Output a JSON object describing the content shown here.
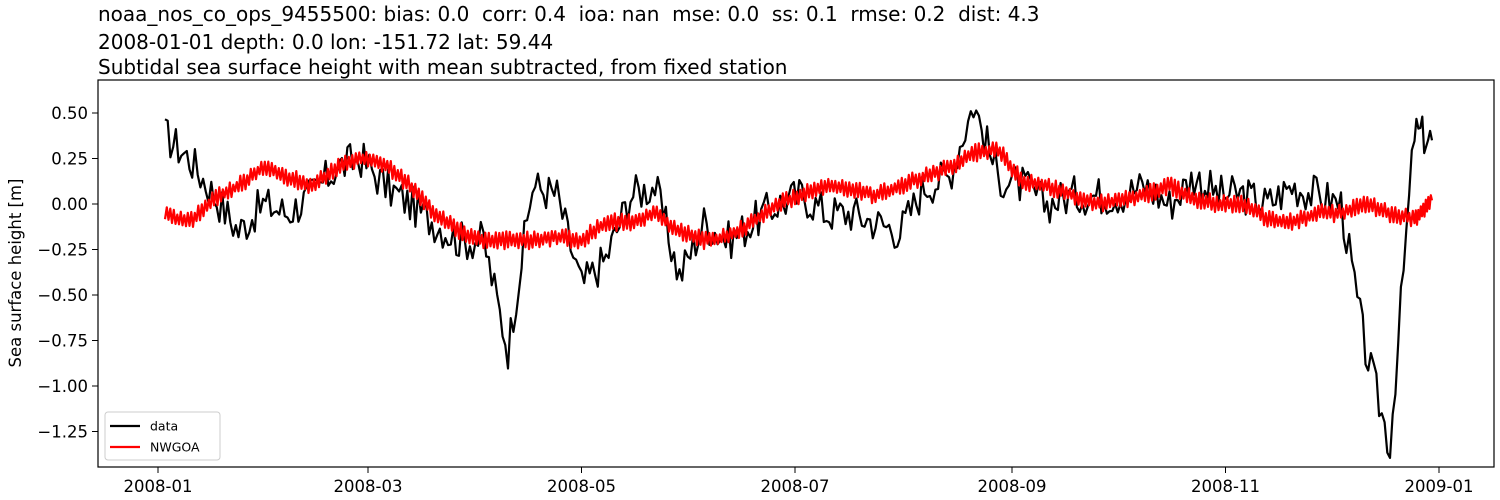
{
  "title": {
    "line1": "noaa_nos_co_ops_9455500: bias: 0.0  corr: 0.4  ioa: nan  mse: 0.0  ss: 0.1  rmse: 0.2  dist: 4.3",
    "line2": "2008-01-01 depth: 0.0 lon: -151.72 lat: 59.44",
    "line3": "Subtidal sea surface height with mean subtracted, from fixed station"
  },
  "colors": {
    "data": "#000000",
    "model": "#ff0000",
    "axes": "#000000",
    "legend_border": "#cccccc"
  },
  "chart_data": {
    "type": "line",
    "title": "noaa_nos_co_ops_9455500: bias: 0.0  corr: 0.4  ioa: nan  mse: 0.0  ss: 0.1  rmse: 0.2  dist: 4.3 / 2008-01-01 depth: 0.0 lon: -151.72 lat: 59.44 / Subtidal sea surface height with mean subtracted, from fixed station",
    "xlabel": "",
    "ylabel": "Sea surface height [m]",
    "xlim": [
      "2007-12-04",
      "2009-01-28"
    ],
    "ylim": [
      -1.43,
      0.68
    ],
    "grid": false,
    "legend_position": "lower left",
    "x_ticks": [
      "2008-01",
      "2008-03",
      "2008-05",
      "2008-07",
      "2008-09",
      "2008-11",
      "2009-01"
    ],
    "y_ticks": [
      "0.50",
      "0.25",
      "0.00",
      "−0.25",
      "−0.50",
      "−0.75",
      "−1.00",
      "−1.25"
    ],
    "y_tick_values": [
      0.5,
      0.25,
      0.0,
      -0.25,
      -0.5,
      -0.75,
      -1.0,
      -1.25
    ],
    "x": [
      "2008-01-03",
      "2008-01-10",
      "2008-01-17",
      "2008-01-24",
      "2008-01-31",
      "2008-02-07",
      "2008-02-14",
      "2008-02-21",
      "2008-02-28",
      "2008-03-06",
      "2008-03-13",
      "2008-03-20",
      "2008-03-27",
      "2008-04-03",
      "2008-04-10",
      "2008-04-17",
      "2008-04-24",
      "2008-05-01",
      "2008-05-08",
      "2008-05-15",
      "2008-05-22",
      "2008-05-29",
      "2008-06-05",
      "2008-06-12",
      "2008-06-19",
      "2008-06-26",
      "2008-07-03",
      "2008-07-10",
      "2008-07-17",
      "2008-07-24",
      "2008-07-31",
      "2008-08-07",
      "2008-08-14",
      "2008-08-21",
      "2008-08-28",
      "2008-09-04",
      "2008-09-11",
      "2008-09-18",
      "2008-09-25",
      "2008-10-02",
      "2008-10-09",
      "2008-10-16",
      "2008-10-23",
      "2008-10-30",
      "2008-11-06",
      "2008-11-13",
      "2008-11-20",
      "2008-11-27",
      "2008-12-04",
      "2008-12-11",
      "2008-12-18",
      "2008-12-25",
      "2008-12-30"
    ],
    "series": [
      {
        "name": "data",
        "color": "#000000",
        "values": [
          0.38,
          0.25,
          0.05,
          -0.15,
          0.0,
          -0.05,
          0.05,
          0.2,
          0.25,
          0.1,
          0.0,
          -0.1,
          -0.2,
          -0.2,
          -0.8,
          0.1,
          0.05,
          -0.45,
          -0.3,
          0.05,
          0.1,
          -0.4,
          -0.1,
          -0.2,
          -0.1,
          0.0,
          0.05,
          -0.05,
          -0.05,
          -0.1,
          -0.15,
          0.1,
          0.15,
          0.55,
          0.15,
          0.1,
          0.0,
          0.05,
          0.05,
          0.05,
          0.1,
          0.0,
          0.15,
          0.05,
          0.05,
          0.0,
          0.1,
          0.05,
          0.0,
          -0.8,
          -1.33,
          0.4,
          0.35
        ]
      },
      {
        "name": "NWGOA",
        "color": "#ff0000",
        "values": [
          -0.06,
          -0.1,
          0.03,
          0.1,
          0.2,
          0.15,
          0.1,
          0.2,
          0.25,
          0.22,
          0.1,
          -0.05,
          -0.15,
          -0.2,
          -0.2,
          -0.2,
          -0.18,
          -0.2,
          -0.1,
          -0.1,
          -0.05,
          -0.15,
          -0.2,
          -0.18,
          -0.1,
          0.0,
          0.05,
          0.1,
          0.08,
          0.05,
          0.1,
          0.15,
          0.2,
          0.28,
          0.3,
          0.12,
          0.1,
          0.05,
          0.0,
          0.02,
          0.05,
          0.1,
          0.03,
          0.0,
          0.0,
          -0.08,
          -0.1,
          -0.05,
          -0.05,
          0.0,
          -0.05,
          -0.08,
          0.02
        ]
      }
    ]
  },
  "legend": {
    "items": [
      {
        "label": "data"
      },
      {
        "label": "NWGOA"
      }
    ]
  }
}
